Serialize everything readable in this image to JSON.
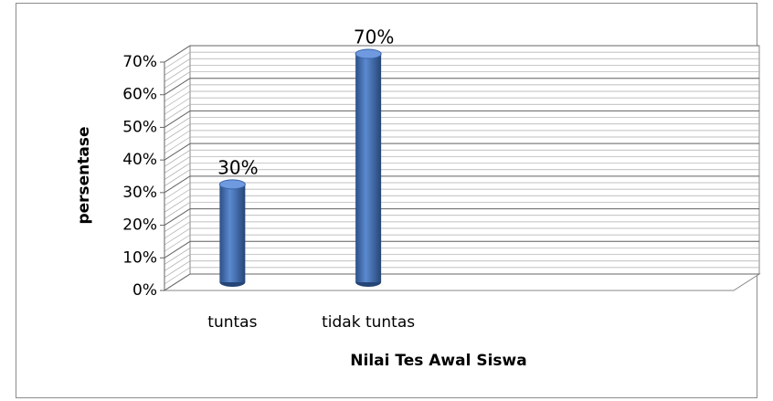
{
  "chart_data": {
    "type": "bar3d",
    "x_label": "Nilai Tes Awal Siswa",
    "y_label": "persentase",
    "categories": [
      "tuntas",
      "tidak tuntas",
      null,
      null
    ],
    "values": [
      30,
      70,
      null,
      null
    ],
    "value_labels": [
      "30%",
      "70%",
      null,
      null
    ],
    "color": "#4472c4",
    "ylim": [
      0,
      70
    ],
    "yticks": [
      {
        "value": 0,
        "label": "0%"
      },
      {
        "value": 10,
        "label": "10%"
      },
      {
        "value": 20,
        "label": "20%"
      },
      {
        "value": 30,
        "label": "30%"
      },
      {
        "value": 40,
        "label": "40%"
      },
      {
        "value": 50,
        "label": "50%"
      },
      {
        "value": 60,
        "label": "60%"
      },
      {
        "value": 70,
        "label": "70%"
      }
    ],
    "grid": true
  }
}
